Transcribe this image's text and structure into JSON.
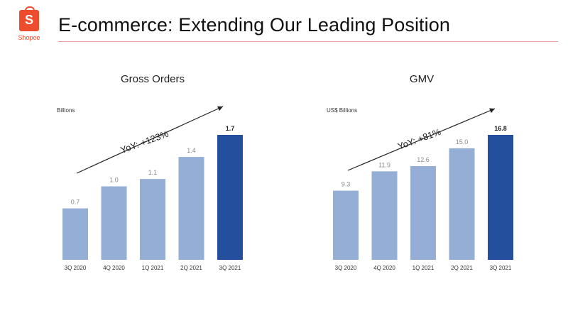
{
  "header": {
    "logo_letter": "S",
    "logo_text": "Shopee",
    "title": "E-commerce: Extending Our Leading Position"
  },
  "colors": {
    "bar_light": "#95aed6",
    "bar_highlight": "#234f9c",
    "brand": "#ee4d2d"
  },
  "chart_data": [
    {
      "type": "bar",
      "title": "Gross Orders",
      "ylabel": "Billions",
      "categories": [
        "3Q 2020",
        "4Q 2020",
        "1Q 2021",
        "2Q 2021",
        "3Q 2021"
      ],
      "values": [
        0.7,
        1.0,
        1.1,
        1.4,
        1.7
      ],
      "labels": [
        "0.7",
        "1.0",
        "1.1",
        "1.4",
        "1.7"
      ],
      "highlight_index": 4,
      "annotation": "YoY: +123%",
      "ylim": [
        0,
        1.7
      ]
    },
    {
      "type": "bar",
      "title": "GMV",
      "ylabel": "US$ Billions",
      "categories": [
        "3Q 2020",
        "4Q 2020",
        "1Q 2021",
        "2Q 2021",
        "3Q 2021"
      ],
      "values": [
        9.3,
        11.9,
        12.6,
        15.0,
        16.8
      ],
      "labels": [
        "9.3",
        "11.9",
        "12.6",
        "15.0",
        "16.8"
      ],
      "highlight_index": 4,
      "annotation": "YoY: +81%",
      "ylim": [
        0,
        16.8
      ]
    }
  ]
}
